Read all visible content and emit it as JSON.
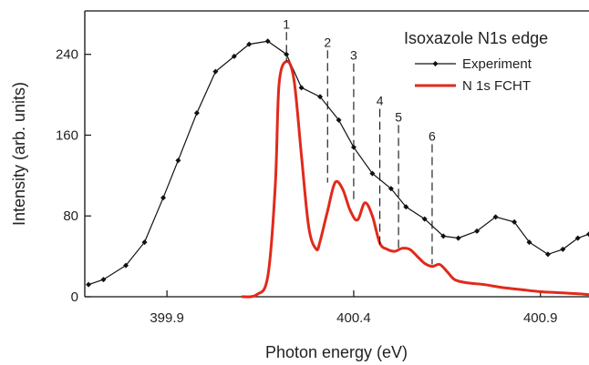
{
  "chart_data": {
    "type": "line",
    "title": "Isoxazole N1s edge",
    "xlabel": "Photon energy (eV)",
    "ylabel": "Intensity (arb. units)",
    "xlim": [
      399.68,
      401.03
    ],
    "ylim": [
      0,
      283
    ],
    "x_ticks": [
      399.9,
      400.4,
      400.9
    ],
    "x_tick_labels": [
      "399.9",
      "400.4",
      "400.9"
    ],
    "y_ticks": [
      0,
      80,
      160,
      240
    ],
    "y_tick_labels": [
      "0",
      "80",
      "160",
      "240"
    ],
    "grid": false,
    "legend_position": "top-right",
    "series": [
      {
        "name": "Experiment",
        "color": "#111111",
        "marker": "diamond",
        "x": [
          399.69,
          399.73,
          399.79,
          399.84,
          399.89,
          399.93,
          399.98,
          400.03,
          400.08,
          400.12,
          400.17,
          400.22,
          400.26,
          400.31,
          400.36,
          400.4,
          400.45,
          400.5,
          400.54,
          400.59,
          400.64,
          400.68,
          400.73,
          400.78,
          400.83,
          400.87,
          400.92,
          400.96,
          401.0,
          401.03
        ],
        "y": [
          12,
          17,
          31,
          54,
          98,
          135,
          182,
          223,
          238,
          250,
          253,
          240,
          207,
          198,
          175,
          148,
          122,
          107,
          89,
          77,
          60,
          58,
          65,
          79,
          74,
          54,
          42,
          47,
          58,
          62
        ]
      },
      {
        "name": "N 1s FCHT",
        "color": "#e02a1b",
        "x": [
          400.1,
          400.14,
          400.17,
          400.19,
          400.2,
          400.22,
          400.24,
          400.26,
          400.28,
          400.3,
          400.31,
          400.33,
          400.35,
          400.37,
          400.39,
          400.41,
          400.43,
          400.45,
          400.47,
          400.49,
          400.51,
          400.53,
          400.55,
          400.57,
          400.59,
          400.61,
          400.63,
          400.65,
          400.67,
          400.7,
          400.75,
          400.8,
          400.85,
          400.9,
          400.95,
          401.0,
          401.03
        ],
        "y": [
          0,
          2,
          20,
          110,
          210,
          233,
          215,
          140,
          68,
          47,
          55,
          85,
          113,
          107,
          86,
          76,
          93,
          80,
          53,
          47,
          45,
          48,
          47,
          40,
          33,
          30,
          32,
          25,
          17,
          14,
          12,
          9,
          7,
          5,
          4,
          3,
          2
        ]
      }
    ],
    "annotations": [
      {
        "label": "1",
        "x": 400.22,
        "y_top": 262,
        "y_bottom": 233
      },
      {
        "label": "2",
        "x": 400.33,
        "y_top": 244,
        "y_bottom": 113
      },
      {
        "label": "3",
        "x": 400.4,
        "y_top": 231,
        "y_bottom": 93
      },
      {
        "label": "4",
        "x": 400.47,
        "y_top": 186,
        "y_bottom": 50
      },
      {
        "label": "5",
        "x": 400.52,
        "y_top": 170,
        "y_bottom": 47
      },
      {
        "label": "6",
        "x": 400.61,
        "y_top": 151,
        "y_bottom": 32
      }
    ]
  }
}
